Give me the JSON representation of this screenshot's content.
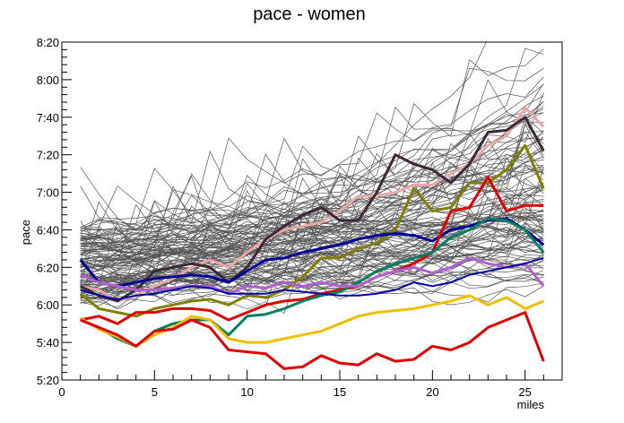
{
  "chart_data": {
    "type": "line",
    "title": "pace - women",
    "xlabel": "miles",
    "ylabel": "pace",
    "xlim": [
      0,
      27
    ],
    "ylim": [
      "5:20",
      "8:20"
    ],
    "x_ticks": [
      "0",
      "5",
      "10",
      "15",
      "20",
      "25"
    ],
    "y_ticks": [
      "5:20",
      "5:40",
      "6:00",
      "6:20",
      "6:40",
      "7:00",
      "7:20",
      "7:40",
      "8:00",
      "8:20"
    ],
    "x": [
      1,
      2,
      3,
      4,
      5,
      6,
      7,
      8,
      9,
      10,
      11,
      12,
      13,
      14,
      15,
      16,
      17,
      18,
      19,
      20,
      21,
      22,
      23,
      24,
      25,
      26
    ],
    "background_runner_count": 120,
    "background_color": "#555555",
    "grid": false,
    "legend": "none",
    "series": [
      {
        "color": "#e8a8a8",
        "width": 3,
        "values": [
          "6:10",
          "6:08",
          "6:02",
          "6:05",
          "6:10",
          "6:14",
          "6:20",
          "6:24",
          "6:20",
          "6:28",
          "6:35",
          "6:40",
          "6:42",
          "6:44",
          "6:50",
          "6:58",
          "6:58",
          "7:00",
          "7:04",
          "7:04",
          "7:10",
          "7:15",
          "7:25",
          "7:30",
          "7:45",
          "7:35"
        ]
      },
      {
        "color": "#3c2838",
        "width": 3,
        "values": [
          "6:10",
          "6:05",
          "6:02",
          "6:08",
          "6:18",
          "6:20",
          "6:22",
          "6:20",
          "6:12",
          "6:20",
          "6:35",
          "6:42",
          "6:48",
          "6:52",
          "6:45",
          "6:45",
          "7:00",
          "7:20",
          "7:15",
          "7:12",
          "7:05",
          "7:15",
          "7:32",
          "7:33",
          "7:40",
          "7:22"
        ]
      },
      {
        "color": "#808000",
        "width": 3,
        "values": [
          "6:06",
          "5:58",
          "5:56",
          "5:54",
          "5:58",
          "6:00",
          "6:02",
          "6:03",
          "6:00",
          "6:05",
          "6:04",
          "6:08",
          "6:15",
          "6:25",
          "6:25",
          "6:30",
          "6:33",
          "6:40",
          "7:02",
          "6:50",
          "6:52",
          "7:05",
          "7:05",
          "7:12",
          "7:25",
          "7:02"
        ]
      },
      {
        "color": "#000099",
        "width": 3,
        "values": [
          "6:24",
          "6:12",
          "6:10",
          "6:12",
          "6:14",
          "6:15",
          "6:16",
          "6:15",
          "6:12",
          "6:18",
          "6:24",
          "6:25",
          "6:28",
          "6:30",
          "6:32",
          "6:35",
          "6:37",
          "6:38",
          "6:37",
          "6:34",
          "6:40",
          "6:42",
          "6:45",
          "6:46",
          "6:40",
          "6:32"
        ]
      },
      {
        "color": "#e00000",
        "width": 3,
        "values": [
          "5:52",
          "5:54",
          "5:50",
          "5:56",
          "5:56",
          "5:58",
          "5:58",
          "5:57",
          "5:52",
          "5:56",
          "6:00",
          "6:02",
          "6:03",
          "6:06",
          "6:08",
          "6:10",
          "6:15",
          "6:18",
          "6:22",
          "6:28",
          "6:50",
          "6:52",
          "7:08",
          "6:50",
          "6:53",
          "6:53"
        ]
      },
      {
        "color": "#008060",
        "width": 3,
        "values": [
          "5:52",
          "5:48",
          "5:42",
          "5:38",
          "5:46",
          "5:50",
          "5:52",
          "5:52",
          "5:44",
          "5:54",
          "5:55",
          "5:58",
          "6:02",
          "6:05",
          "6:07",
          "6:12",
          "6:18",
          "6:22",
          "6:25",
          "6:28",
          "6:36",
          "6:40",
          "6:46",
          "6:45",
          "6:40",
          "6:28"
        ]
      },
      {
        "color": "#b060d0",
        "width": 3,
        "values": [
          "6:16",
          "6:12",
          "6:10",
          "6:08",
          "6:08",
          "6:09",
          "6:10",
          "6:10",
          "6:06",
          "6:10",
          "6:09",
          "6:12",
          "6:10",
          "6:12",
          "6:10",
          "6:10",
          "6:15",
          "6:18",
          "6:20",
          "6:17",
          "6:20",
          "6:25",
          "6:22",
          "6:20",
          "6:22",
          "6:10"
        ]
      },
      {
        "color": "#0000aa",
        "width": 2,
        "values": [
          "6:08",
          "6:05",
          "6:03",
          "6:05",
          "6:06",
          "6:08",
          "6:10",
          "6:09",
          "6:06",
          "6:06",
          "6:06",
          "6:08",
          "6:07",
          "6:06",
          "6:05",
          "6:05",
          "6:06",
          "6:08",
          "6:12",
          "6:10",
          "6:12",
          "6:16",
          "6:18",
          "6:20",
          "6:22",
          "6:25"
        ]
      },
      {
        "color": "#f0c000",
        "width": 3,
        "values": [
          "5:53",
          "5:47",
          "5:43",
          "5:38",
          "5:44",
          "5:48",
          "5:54",
          "5:52",
          "5:42",
          "5:40",
          "5:40",
          "5:42",
          "5:44",
          "5:46",
          "5:50",
          "5:54",
          "5:56",
          "5:57",
          "5:58",
          "6:00",
          "6:02",
          "6:05",
          "6:00",
          "6:04",
          "5:58",
          "6:02"
        ]
      },
      {
        "color": "#e00000",
        "width": 3,
        "values": [
          "5:52",
          "5:48",
          "5:44",
          "5:38",
          "5:46",
          "5:47",
          "5:52",
          "5:48",
          "5:36",
          "5:35",
          "5:34",
          "5:26",
          "5:27",
          "5:33",
          "5:29",
          "5:28",
          "5:34",
          "5:30",
          "5:31",
          "5:38",
          "5:36",
          "5:40",
          "5:48",
          "5:52",
          "5:56",
          "5:30"
        ]
      }
    ]
  }
}
